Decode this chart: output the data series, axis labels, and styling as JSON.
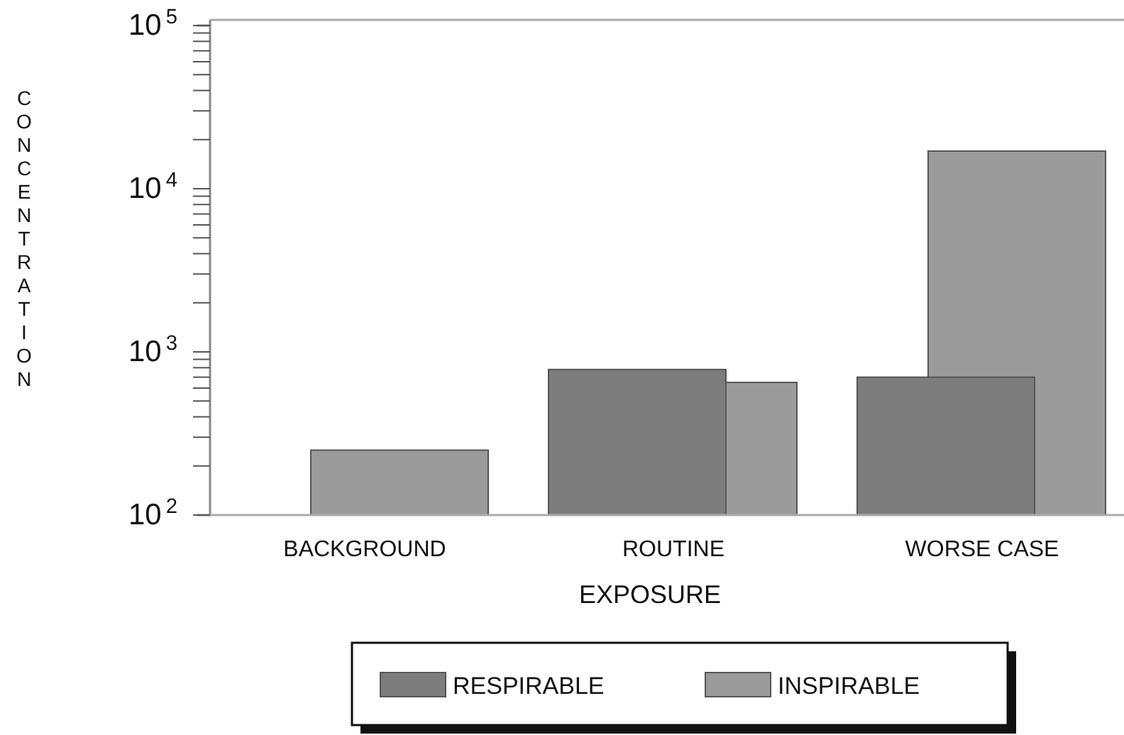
{
  "chart_data": {
    "type": "bar",
    "xlabel": "EXPOSURE",
    "ylabel": "CONCENTRATION",
    "categories": [
      "BACKGROUND",
      "ROUTINE",
      "WORSE CASE"
    ],
    "series": [
      {
        "name": "RESPIRABLE",
        "color": "#7d7d7d",
        "values": [
          null,
          780,
          700
        ]
      },
      {
        "name": "INSPIRABLE",
        "color": "#9b9b9b",
        "values": [
          250,
          650,
          17000
        ]
      }
    ],
    "log": "y",
    "ylim": [
      100,
      100000
    ],
    "yticks": [
      {
        "value": 100,
        "label": "10$^{2}$"
      },
      {
        "value": 200,
        "label": null
      },
      {
        "value": 300,
        "label": null
      },
      {
        "value": 400,
        "label": null
      },
      {
        "value": 500,
        "label": null
      },
      {
        "value": 600,
        "label": null
      },
      {
        "value": 700,
        "label": null
      },
      {
        "value": 800,
        "label": null
      },
      {
        "value": 900,
        "label": null
      },
      {
        "value": 1000,
        "label": "10$^{3}$"
      },
      {
        "value": 2000,
        "label": null
      },
      {
        "value": 3000,
        "label": null
      },
      {
        "value": 4000,
        "label": null
      },
      {
        "value": 5000,
        "label": null
      },
      {
        "value": 6000,
        "label": null
      },
      {
        "value": 7000,
        "label": null
      },
      {
        "value": 8000,
        "label": null
      },
      {
        "value": 9000,
        "label": null
      },
      {
        "value": 10000,
        "label": "10$^{4}$"
      },
      {
        "value": 20000,
        "label": null
      },
      {
        "value": 30000,
        "label": null
      },
      {
        "value": 40000,
        "label": null
      },
      {
        "value": 50000,
        "label": null
      },
      {
        "value": 60000,
        "label": null
      },
      {
        "value": 70000,
        "label": null
      },
      {
        "value": 80000,
        "label": null
      },
      {
        "value": 90000,
        "label": null
      },
      {
        "value": 100000,
        "label": "10$^{5}$"
      }
    ],
    "legend": "bottom",
    "grid": false
  }
}
